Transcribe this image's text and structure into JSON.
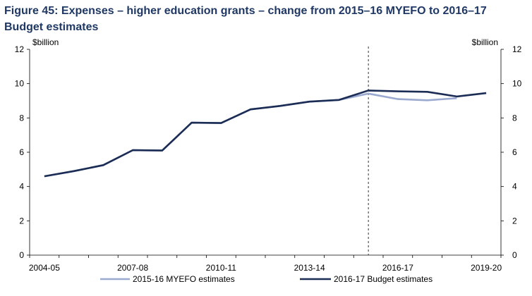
{
  "title": "Figure 45: Expenses – higher education grants – change from 2015–16 MYEFO to 2016–17 Budget estimates",
  "chart_data": {
    "type": "line",
    "title": "Figure 45: Expenses – higher education grants – change from 2015–16 MYEFO to 2016–17 Budget estimates",
    "ylabel_left": "$billion",
    "ylabel_right": "$billion",
    "ylim": [
      0,
      12
    ],
    "yticks": [
      0,
      2,
      4,
      6,
      8,
      10,
      12
    ],
    "x": [
      "2004-05",
      "2005-06",
      "2006-07",
      "2007-08",
      "2008-09",
      "2009-10",
      "2010-11",
      "2011-12",
      "2012-13",
      "2013-14",
      "2014-15",
      "2015-16",
      "2016-17",
      "2017-18",
      "2018-19",
      "2019-20"
    ],
    "xtick_labels": [
      "2004-05",
      "2007-08",
      "2010-11",
      "2013-14",
      "2016-17",
      "2019-20"
    ],
    "vline_at": "2015-16",
    "series": [
      {
        "name": "2015-16 MYEFO estimates",
        "color": "#9aa9cf",
        "values": [
          4.6,
          4.9,
          5.25,
          6.12,
          6.1,
          7.72,
          7.7,
          8.5,
          8.7,
          8.95,
          9.05,
          9.42,
          9.1,
          9.03,
          9.15,
          null
        ]
      },
      {
        "name": "2016-17 Budget estimates",
        "color": "#1b2c55",
        "values": [
          4.6,
          4.9,
          5.25,
          6.12,
          6.1,
          7.72,
          7.7,
          8.5,
          8.7,
          8.95,
          9.05,
          9.6,
          9.55,
          9.52,
          9.25,
          9.45
        ]
      }
    ],
    "legend_position": "bottom",
    "grid": false
  }
}
